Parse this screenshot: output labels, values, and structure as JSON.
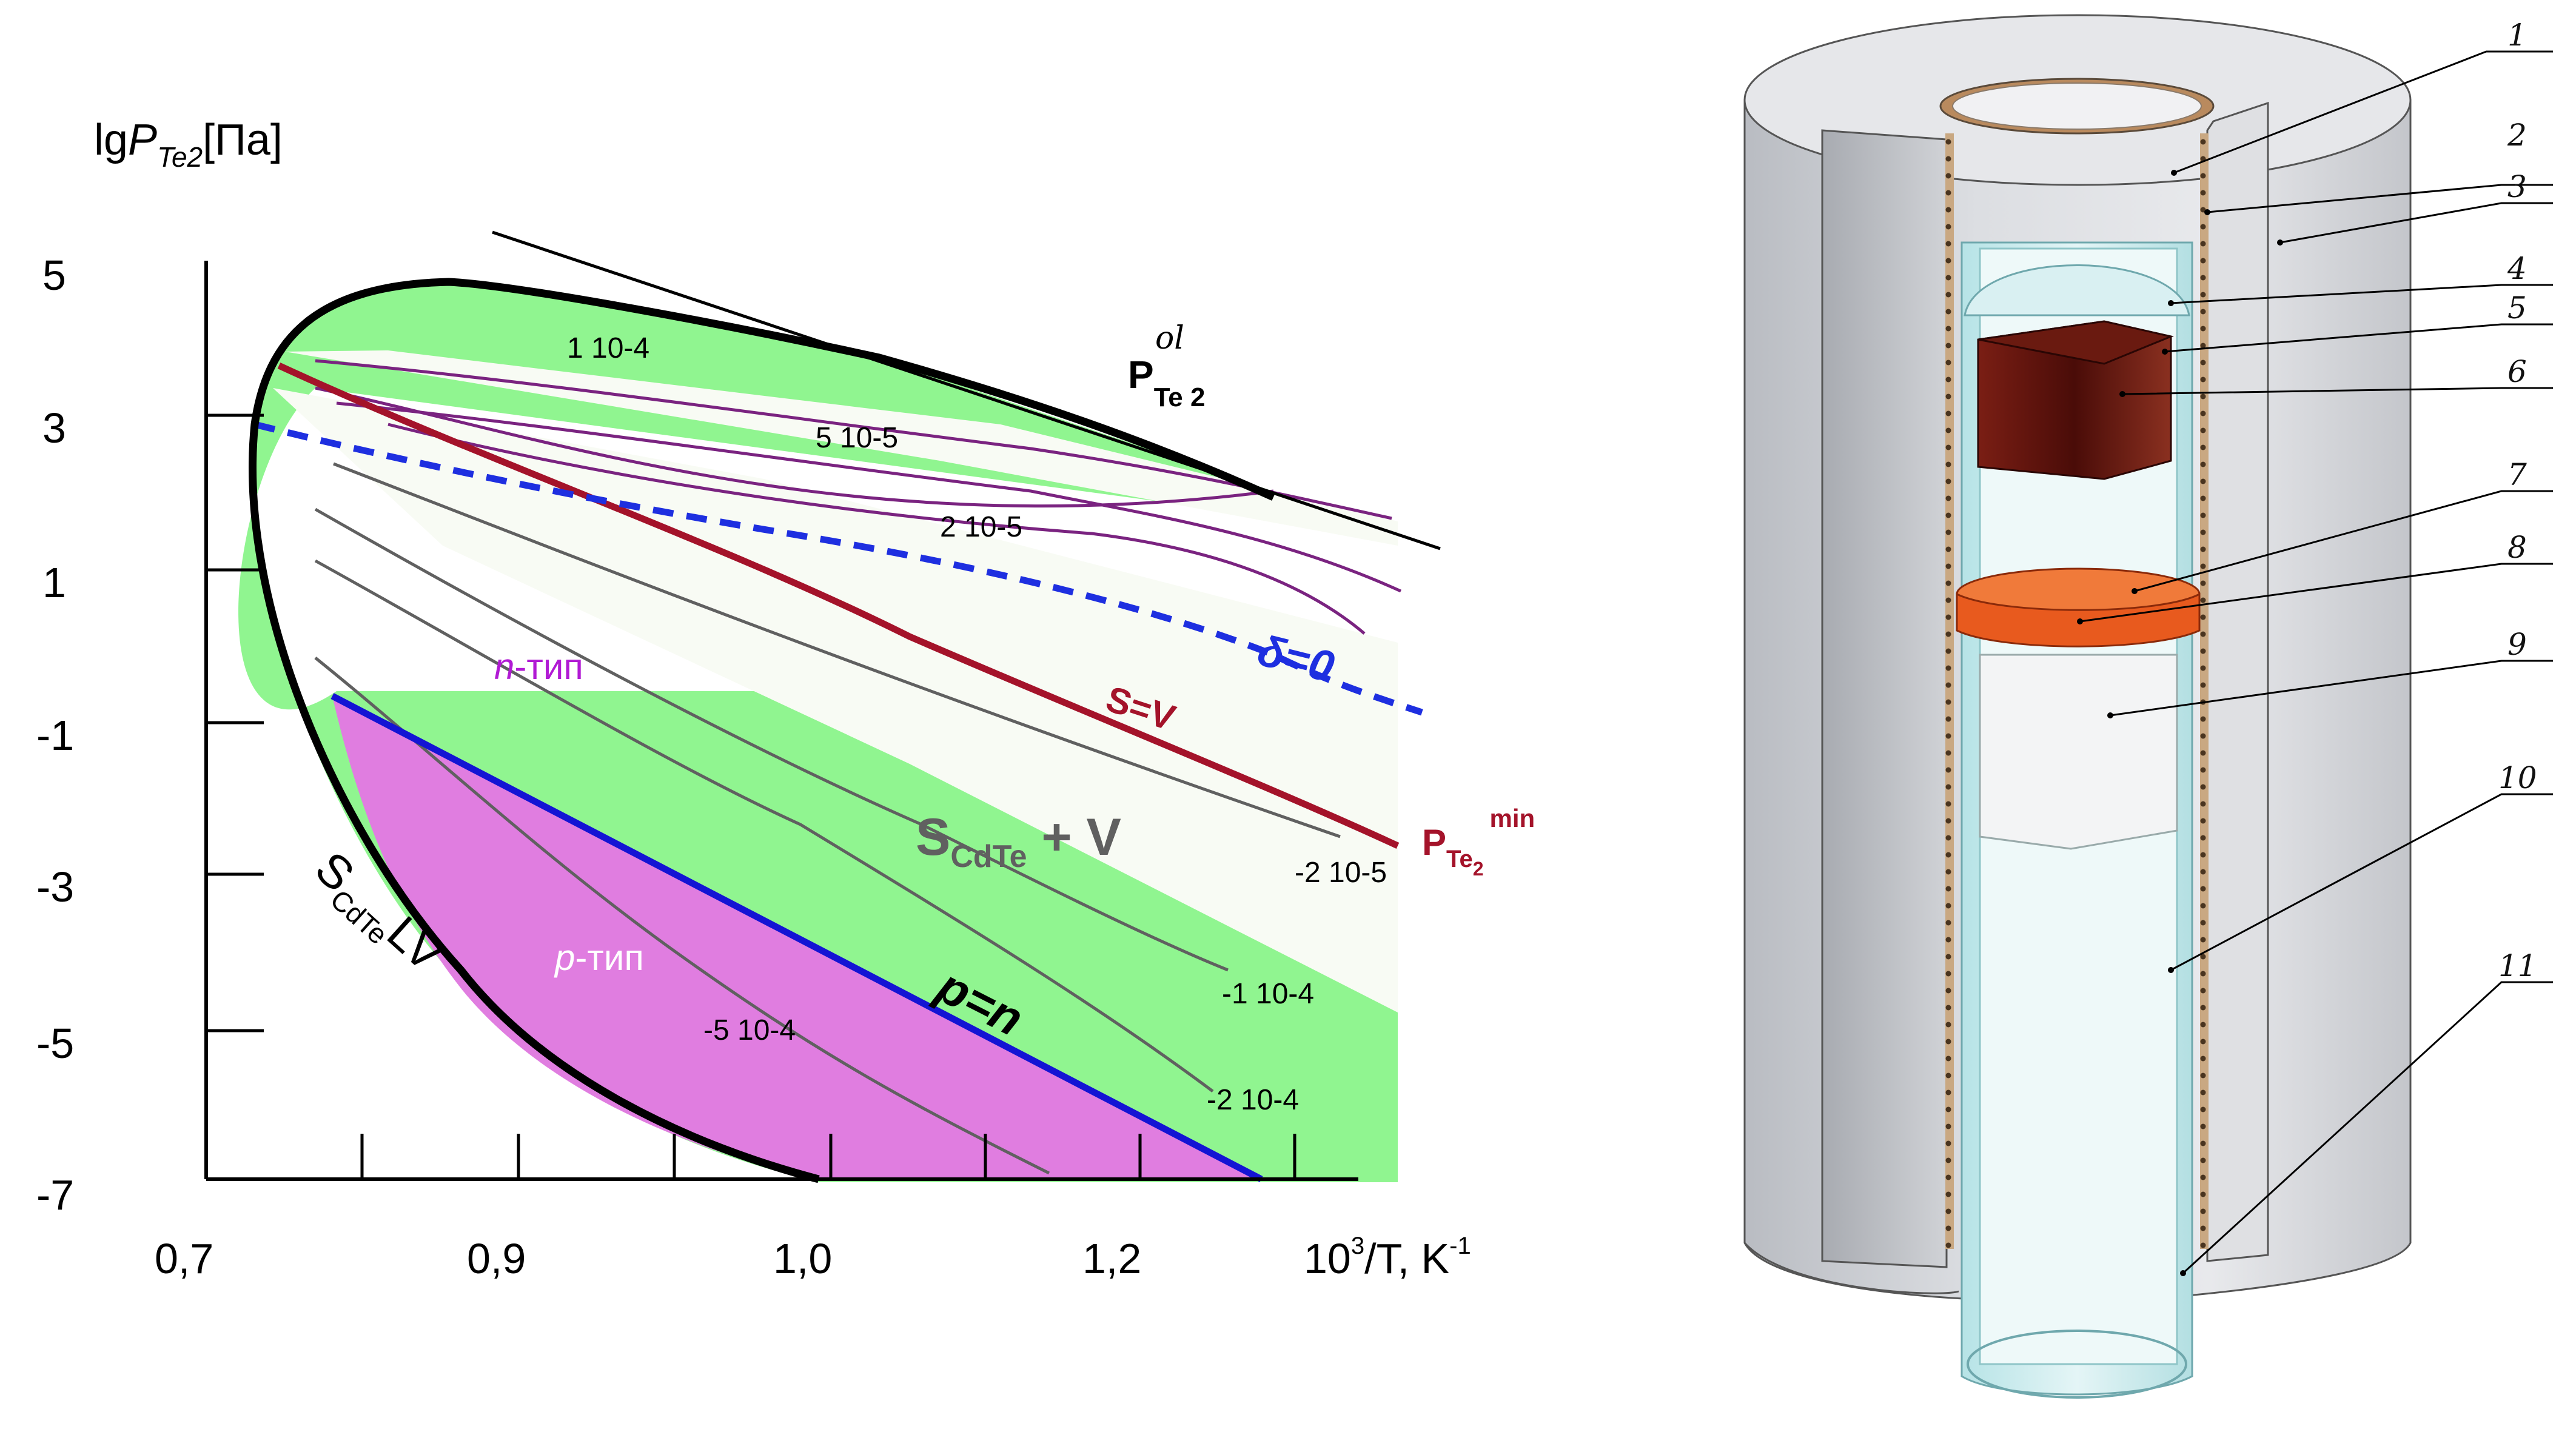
{
  "left_panel": {
    "y_axis_label": {
      "main": "lg",
      "p": "P",
      "sub": "Te2",
      "unit": "[Па]"
    },
    "y_ticks": [
      "5",
      "3",
      "1",
      "-1",
      "-3",
      "-5",
      "-7"
    ],
    "x_ticks": [
      "0,7",
      "0,9",
      "1,0",
      "1,2"
    ],
    "x_axis_label": {
      "main": "10",
      "sup": "3",
      "rest": "/T, K",
      "sup2": "-1"
    },
    "p_ol": {
      "p": "P",
      "sub": "Te 2",
      "sup": "ol"
    },
    "p_min": {
      "p": "P",
      "sub": "Te",
      "subsub": "2",
      "sup": "min"
    },
    "region_labels": {
      "n_type": {
        "italic": "n",
        "rest": "-тип"
      },
      "p_type": {
        "italic": "p",
        "rest": "-тип"
      },
      "s_cdte_v": {
        "s": "S",
        "sub": "CdTe",
        "rest": " + V"
      },
      "s_cdte_lv": {
        "s": "S",
        "sub": "CdTe",
        "rest": "LV"
      }
    },
    "line_labels": {
      "s_eq_v": "S=V",
      "delta_zero": "δ=0",
      "p_eq_n": "p=n"
    },
    "isoconcentration_labels": [
      "1 10-4",
      "5 10-5",
      "2 10-5",
      "-2 10-5",
      "-1 10-4",
      "-2 10-4",
      "-5 10-4"
    ],
    "colors": {
      "green_region": "#90f590",
      "magenta_region": "#e07de0",
      "light_region": "#f8fbf4",
      "purple_lines": "#7a2380",
      "gray_lines": "#606060",
      "s_eq_v_line": "#a4132a",
      "delta_line": "#1e2fe0",
      "p_eq_n_line": "#1414d4",
      "n_type_text": "#b11ad4",
      "p_type_text": "#ffffff"
    }
  },
  "right_panel": {
    "callouts": [
      "1",
      "2",
      "3",
      "4",
      "5",
      "6",
      "7",
      "8",
      "9",
      "10",
      "11"
    ],
    "colors": {
      "insulation": "#d2d4d8",
      "insulation_shadow": "#a9acb2",
      "tube": "#c6eaea",
      "crystal": "#5a0f0a",
      "disc": "#e85a1e"
    }
  }
}
